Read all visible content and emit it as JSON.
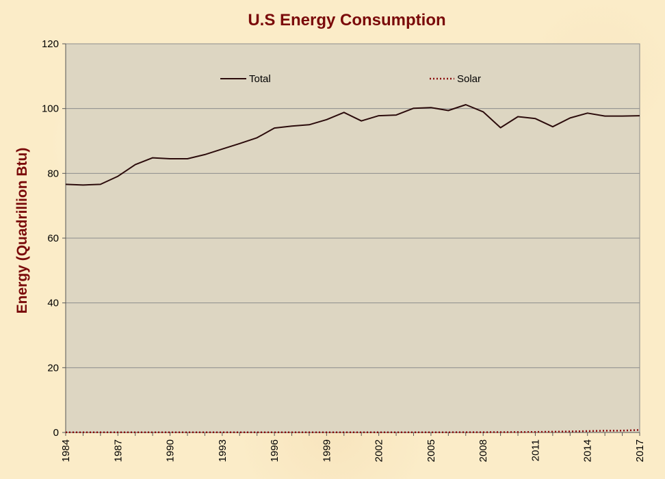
{
  "chart_data": {
    "type": "line",
    "title": "U.S Energy Consumption",
    "xlabel": "",
    "ylabel": "Energy  (Quadrillion Btu)",
    "xlim": [
      1984,
      2017
    ],
    "ylim": [
      0,
      120
    ],
    "yticks": [
      0,
      20,
      40,
      60,
      80,
      100,
      120
    ],
    "xticks": [
      1984,
      1987,
      1990,
      1993,
      1996,
      1999,
      2002,
      2005,
      2008,
      2011,
      2014,
      2017
    ],
    "grid": "horizontal",
    "legend_position": "top",
    "x": [
      1984,
      1985,
      1986,
      1987,
      1988,
      1989,
      1990,
      1991,
      1992,
      1993,
      1994,
      1995,
      1996,
      1997,
      1998,
      1999,
      2000,
      2001,
      2002,
      2003,
      2004,
      2005,
      2006,
      2007,
      2008,
      2009,
      2010,
      2011,
      2012,
      2013,
      2014,
      2015,
      2016,
      2017
    ],
    "series": [
      {
        "name": "Total",
        "style": "solid",
        "color": "#2b0b0b",
        "values": [
          76.6,
          76.4,
          76.6,
          79.1,
          82.7,
          84.8,
          84.5,
          84.5,
          85.8,
          87.5,
          89.2,
          91.0,
          94.0,
          94.6,
          95.0,
          96.6,
          98.8,
          96.2,
          97.8,
          98.0,
          100.1,
          100.3,
          99.4,
          101.2,
          99.0,
          94.1,
          97.5,
          96.9,
          94.4,
          97.1,
          98.6,
          97.7,
          97.7,
          97.8
        ]
      },
      {
        "name": "Solar",
        "style": "dotted",
        "color": "#8b0a0a",
        "values": [
          0.05,
          0.06,
          0.07,
          0.07,
          0.07,
          0.06,
          0.06,
          0.06,
          0.06,
          0.07,
          0.07,
          0.07,
          0.07,
          0.07,
          0.07,
          0.07,
          0.07,
          0.06,
          0.06,
          0.06,
          0.06,
          0.07,
          0.07,
          0.08,
          0.09,
          0.1,
          0.13,
          0.17,
          0.23,
          0.31,
          0.43,
          0.55,
          0.58,
          0.78
        ]
      }
    ]
  }
}
